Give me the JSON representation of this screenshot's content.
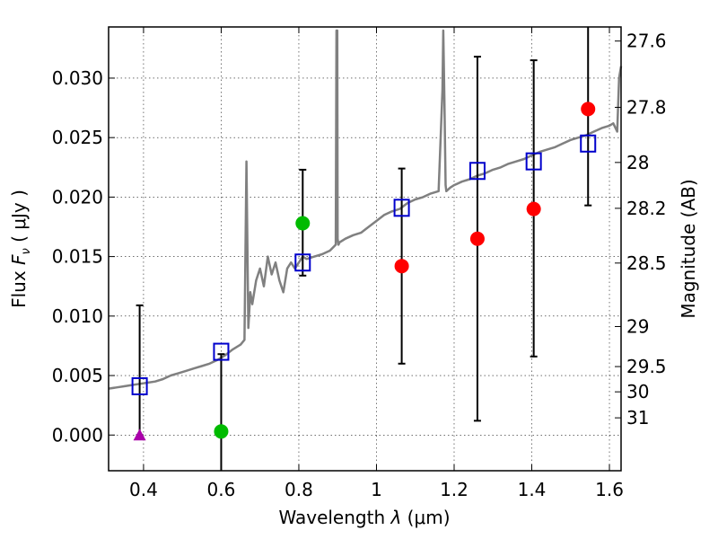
{
  "chart_data": {
    "type": "scatter",
    "xlabel_prefix": "Wavelength  ",
    "xlabel_var": "λ",
    "xlabel_unit": " (μm)",
    "ylabel_prefix": "Flux  ",
    "ylabel_var": "F",
    "ylabel_sub": "ν",
    "ylabel_unit": "  ( μJy )",
    "ylabel_right": "Magnitude (AB)",
    "xlim": [
      0.31,
      1.63
    ],
    "ylim": [
      -0.003,
      0.0343
    ],
    "grid": true,
    "x_ticks": [
      "0.4",
      "0.6",
      "0.8",
      "1",
      "1.2",
      "1.4",
      "1.6"
    ],
    "y_ticks": [
      "0.000",
      "0.005",
      "0.010",
      "0.015",
      "0.020",
      "0.025",
      "0.030"
    ],
    "mag_ticks": [
      "27.6",
      "27.8",
      "28",
      "28.2",
      "28.5",
      "29",
      "29.5",
      "30",
      "31"
    ],
    "colors": {
      "spectrum": "#808080",
      "model_box": "#0000cc",
      "observed_green": "#00bb00",
      "observed_red": "#ff0000",
      "upper_limit": "#aa00aa",
      "errorbar": "#000000"
    },
    "series": [
      {
        "name": "model spectrum",
        "kind": "line",
        "x": [
          0.31,
          0.33,
          0.35,
          0.37,
          0.39,
          0.41,
          0.43,
          0.45,
          0.47,
          0.49,
          0.51,
          0.53,
          0.55,
          0.57,
          0.59,
          0.61,
          0.63,
          0.65,
          0.66,
          0.665,
          0.67,
          0.675,
          0.68,
          0.69,
          0.7,
          0.71,
          0.72,
          0.73,
          0.74,
          0.75,
          0.76,
          0.77,
          0.78,
          0.79,
          0.8,
          0.81,
          0.82,
          0.84,
          0.86,
          0.88,
          0.895,
          0.897,
          0.899,
          0.9,
          0.902,
          0.905,
          0.92,
          0.94,
          0.96,
          0.98,
          1.0,
          1.02,
          1.04,
          1.06,
          1.08,
          1.1,
          1.12,
          1.14,
          1.16,
          1.17,
          1.172,
          1.175,
          1.178,
          1.18,
          1.19,
          1.2,
          1.22,
          1.24,
          1.26,
          1.28,
          1.3,
          1.32,
          1.34,
          1.36,
          1.38,
          1.4,
          1.42,
          1.44,
          1.46,
          1.48,
          1.5,
          1.52,
          1.54,
          1.56,
          1.58,
          1.6,
          1.61,
          1.62,
          1.625,
          1.63
        ],
        "y": [
          0.0039,
          0.004,
          0.0041,
          0.0042,
          0.0043,
          0.0044,
          0.0045,
          0.0047,
          0.005,
          0.0052,
          0.0054,
          0.0056,
          0.0058,
          0.006,
          0.0063,
          0.0067,
          0.0072,
          0.0076,
          0.008,
          0.023,
          0.009,
          0.012,
          0.011,
          0.013,
          0.014,
          0.0125,
          0.015,
          0.0135,
          0.0145,
          0.013,
          0.012,
          0.014,
          0.0145,
          0.014,
          0.0145,
          0.015,
          0.0148,
          0.015,
          0.0152,
          0.0155,
          0.016,
          0.034,
          0.034,
          0.0165,
          0.016,
          0.0162,
          0.0165,
          0.0168,
          0.017,
          0.0175,
          0.018,
          0.0185,
          0.0188,
          0.019,
          0.0195,
          0.0198,
          0.02,
          0.0203,
          0.0205,
          0.029,
          0.034,
          0.028,
          0.021,
          0.0205,
          0.0208,
          0.021,
          0.0213,
          0.0215,
          0.0218,
          0.022,
          0.0223,
          0.0225,
          0.0228,
          0.023,
          0.0232,
          0.0235,
          0.0238,
          0.024,
          0.0242,
          0.0245,
          0.0248,
          0.025,
          0.0252,
          0.0255,
          0.0258,
          0.026,
          0.0262,
          0.0255,
          0.03,
          0.031
        ]
      },
      {
        "name": "model photometry",
        "kind": "open-square",
        "x": [
          0.39,
          0.6,
          0.81,
          1.065,
          1.26,
          1.405,
          1.545
        ],
        "y": [
          0.0041,
          0.007,
          0.0145,
          0.0191,
          0.0222,
          0.023,
          0.0245
        ]
      },
      {
        "name": "observed (green)",
        "kind": "filled-circle",
        "color_key": "observed_green",
        "x": [
          0.6,
          0.81
        ],
        "y": [
          0.0003,
          0.0178
        ],
        "yerr_low": [
          null,
          0.0134
        ],
        "yerr_high": [
          null,
          0.0223
        ]
      },
      {
        "name": "observed (red)",
        "kind": "filled-circle",
        "color_key": "observed_red",
        "x": [
          1.065,
          1.26,
          1.405,
          1.545
        ],
        "y": [
          0.0142,
          0.0165,
          0.019,
          0.0274
        ],
        "yerr_low": [
          0.006,
          0.0012,
          0.0066,
          0.0193
        ],
        "yerr_high": [
          0.0224,
          0.0318,
          0.0315,
          0.0343
        ]
      },
      {
        "name": "upper limit",
        "kind": "triangle",
        "color_key": "upper_limit",
        "x": [
          0.39
        ],
        "y": [
          0.0
        ],
        "yerr_low": [
          0.0
        ],
        "yerr_high": [
          0.0109
        ]
      }
    ],
    "extra_errorbars": [
      {
        "x": 0.6,
        "low": -0.003,
        "high": 0.0068
      }
    ]
  }
}
